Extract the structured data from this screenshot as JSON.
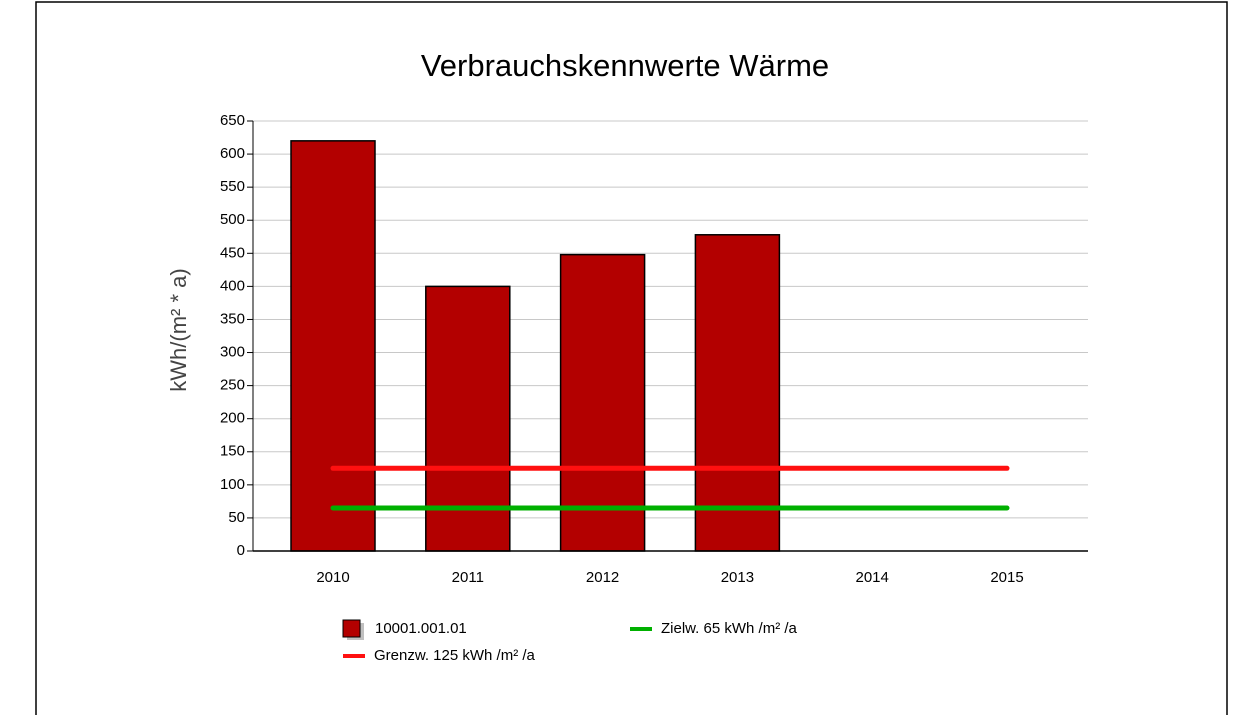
{
  "chart_data": {
    "type": "bar",
    "title": "Verbrauchskennwerte Wärme",
    "y_label": "kWh/(m² * a)",
    "categories": [
      "2010",
      "2011",
      "2012",
      "2013",
      "2014",
      "2015"
    ],
    "series": [
      {
        "name": "10001.001.01",
        "type": "bar",
        "color": "#b30000",
        "values": [
          620,
          400,
          448,
          478,
          null,
          null
        ]
      },
      {
        "name": "Zielw. 65 kWh /m² /a",
        "type": "line",
        "color": "#00b000",
        "values": [
          65,
          65,
          65,
          65,
          65,
          65
        ]
      },
      {
        "name": "Grenzw. 125 kWh /m² /a",
        "type": "line",
        "color": "#ff1010",
        "values": [
          125,
          125,
          125,
          125,
          125,
          125
        ]
      }
    ],
    "ylim": [
      0,
      650
    ],
    "yticks": [
      0,
      50,
      100,
      150,
      200,
      250,
      300,
      350,
      400,
      450,
      500,
      550,
      600,
      650
    ],
    "grid": true,
    "legend": "bottom"
  }
}
